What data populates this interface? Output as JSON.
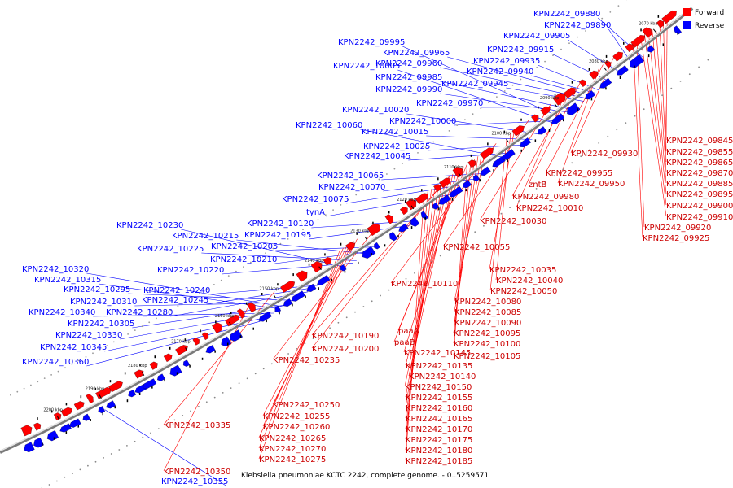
{
  "caption": "Klebsiella pneumoniae KCTC 2242, complete genome. - 0..5259571",
  "legend": [
    {
      "label": "Forward",
      "color": "#ff0000"
    },
    {
      "label": "Reverse",
      "color": "#0000ff"
    }
  ],
  "colors": {
    "forward": "#ff0000",
    "reverse": "#0000ff",
    "backbone": "#888888"
  },
  "ticks": [
    "2070 kbp",
    "2080 kbp",
    "2090 kbp",
    "2100 kbp",
    "2110 kbp",
    "2120 kbp",
    "2130 kbp",
    "2140 kbp",
    "2150 kbp",
    "2160 kbp",
    "2170 kbp",
    "2180 kbp",
    "2190 kbp",
    "2200 kbp"
  ],
  "reverse_labels": [
    "KPN2242_09880",
    "KPN2242_09890",
    "KPN2242_09995",
    "KPN2242_09905",
    "KPN2242_09965",
    "KPN2242_09915",
    "KPN2242_09960",
    "KPN2242_09935",
    "KPN2242_10005",
    "KPN2242_09940",
    "KPN2242_09985",
    "KPN2242_09945",
    "KPN2242_09990",
    "KPN2242_09970",
    "KPN2242_10020",
    "KPN2242_10000",
    "KPN2242_10060",
    "KPN2242_10015",
    "KPN2242_10025",
    "KPN2242_10045",
    "KPN2242_10065",
    "KPN2242_10070",
    "KPN2242_10075",
    "tynA",
    "KPN2242_10120",
    "KPN2242_10230",
    "KPN2242_10195",
    "KPN2242_10215",
    "KPN2242_10225",
    "KPN2242_10205",
    "KPN2242_10210",
    "KPN2242_10220",
    "KPN2242_10320",
    "KPN2242_10315",
    "KPN2242_10295",
    "KPN2242_10240",
    "KPN2242_10310",
    "KPN2242_10245",
    "KPN2242_10340",
    "KPN2242_10280",
    "KPN2242_10305",
    "KPN2242_10330",
    "KPN2242_10345",
    "KPN2242_10360",
    "KPN2242_10355"
  ],
  "forward_labels": [
    "KPN2242_09845",
    "KPN2242_09855",
    "KPN2242_09930",
    "KPN2242_09865",
    "KPN2242_09870",
    "KPN2242_09955",
    "KPN2242_09885",
    "zntB",
    "KPN2242_09950",
    "KPN2242_09895",
    "KPN2242_09980",
    "KPN2242_09900",
    "KPN2242_10010",
    "KPN2242_09910",
    "KPN2242_10030",
    "KPN2242_09920",
    "KPN2242_09925",
    "KPN2242_10055",
    "KPN2242_10035",
    "KPN2242_10040",
    "KPN2242_10110",
    "KPN2242_10050",
    "KPN2242_10080",
    "KPN2242_10085",
    "KPN2242_10090",
    "paaA",
    "KPN2242_10190",
    "paaB",
    "KPN2242_10095",
    "KPN2242_10200",
    "KPN2242_10100",
    "KPN2242_10145",
    "KPN2242_10105",
    "KPN2242_10235",
    "KPN2242_10135",
    "KPN2242_10140",
    "KPN2242_10150",
    "KPN2242_10155",
    "KPN2242_10250",
    "KPN2242_10160",
    "KPN2242_10255",
    "KPN2242_10165",
    "KPN2242_10335",
    "KPN2242_10260",
    "KPN2242_10170",
    "KPN2242_10265",
    "KPN2242_10175",
    "KPN2242_10270",
    "KPN2242_10180",
    "KPN2242_10275",
    "KPN2242_10185",
    "KPN2242_10350"
  ]
}
